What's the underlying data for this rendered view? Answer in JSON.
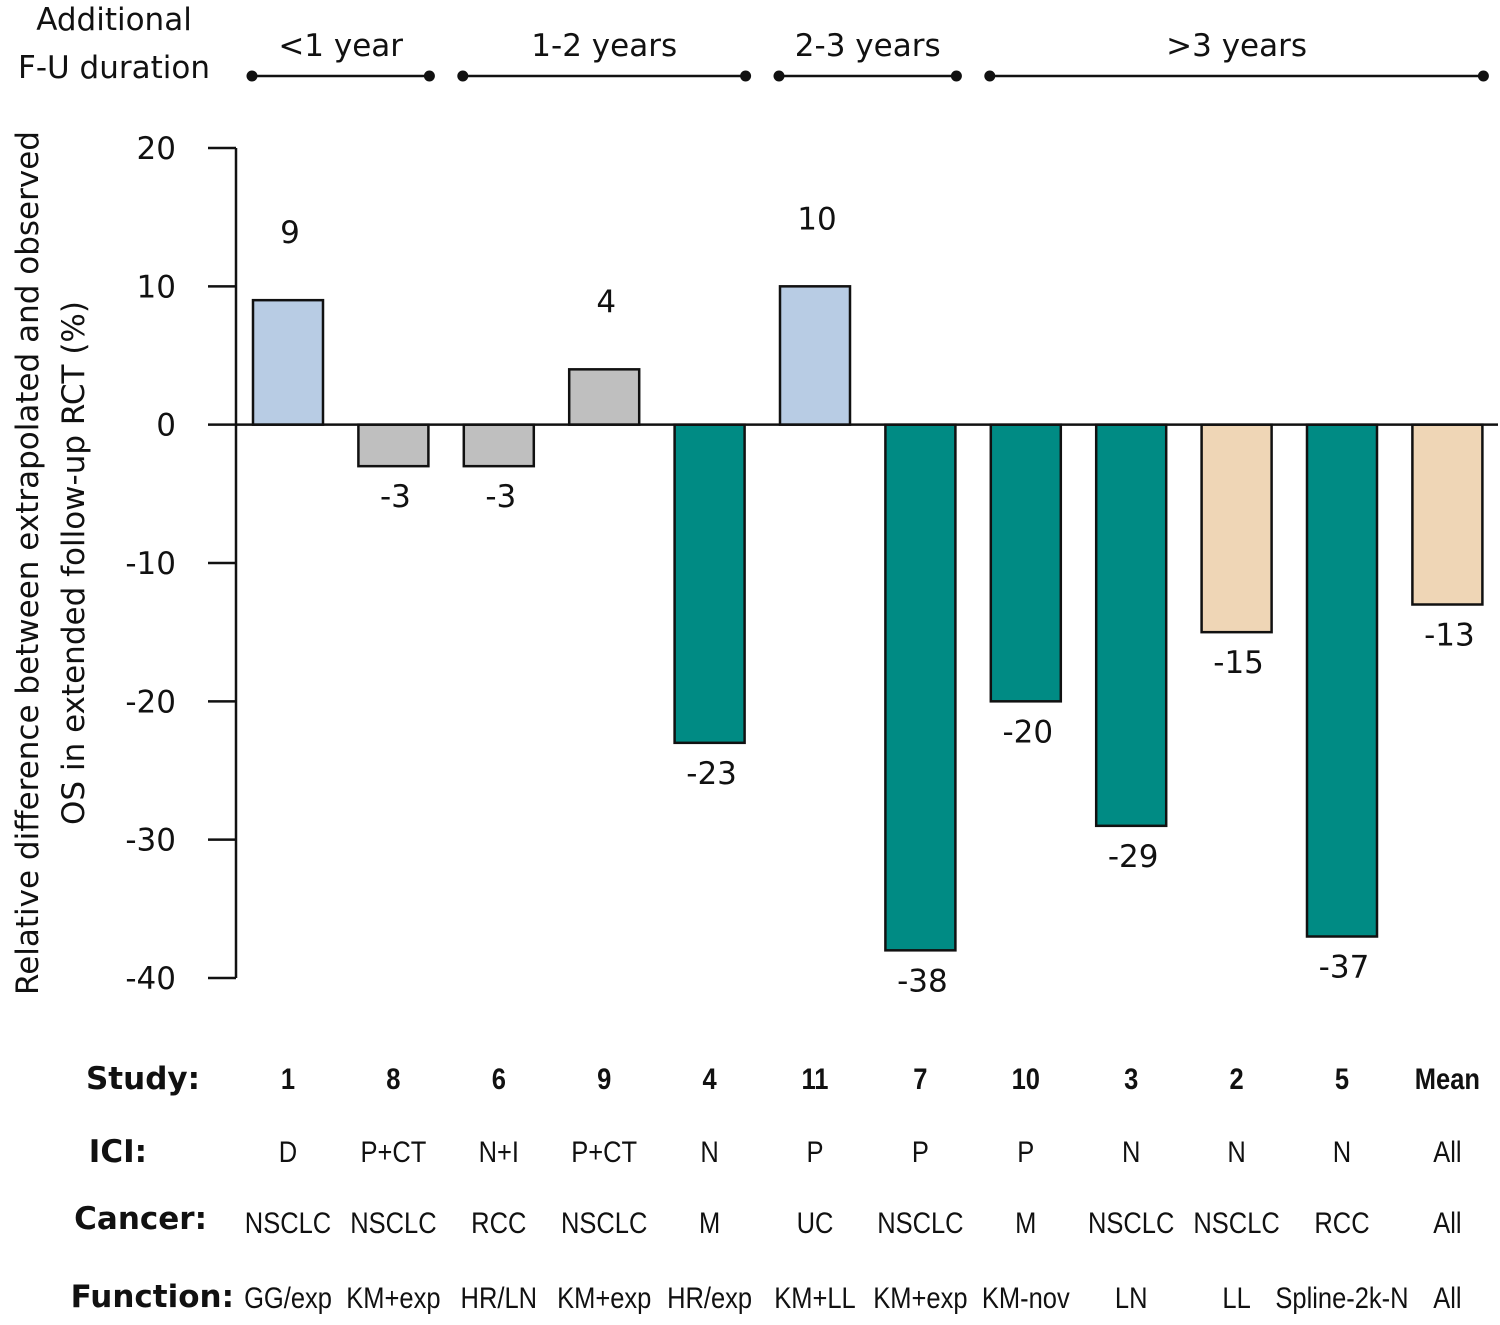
{
  "chart_data": {
    "type": "bar",
    "title": "",
    "ylabel_lines": [
      "Relative difference between extrapolated and observed",
      "OS in extended follow-up RCT (%)"
    ],
    "xlabel": "",
    "ylim": [
      -40,
      20
    ],
    "yticks": [
      20,
      10,
      0,
      -10,
      -20,
      -30,
      -40
    ],
    "grid": false,
    "legend": "none",
    "header_label_lines": [
      "Additional",
      "F-U duration"
    ],
    "duration_groups": [
      {
        "label": "<1 year",
        "from_index": 0,
        "to_index": 1
      },
      {
        "label": "1-2 years",
        "from_index": 2,
        "to_index": 4
      },
      {
        "label": "2-3 years",
        "from_index": 5,
        "to_index": 6
      },
      {
        "label": ">3 years",
        "from_index": 7,
        "to_index": 11
      }
    ],
    "row_labels": {
      "study": "Study:",
      "ici": "ICI:",
      "cancer": "Cancer:",
      "function": "Function:"
    },
    "categories": [
      "1",
      "8",
      "6",
      "9",
      "4",
      "11",
      "7",
      "10",
      "3",
      "2",
      "5",
      "Mean"
    ],
    "values": [
      9,
      -3,
      -3,
      4,
      -23,
      10,
      -38,
      -20,
      -29,
      -15,
      -37,
      -13
    ],
    "data_labels": [
      "9",
      "-3",
      "-3",
      "4",
      "-23",
      "10",
      "-38",
      "-20",
      "-29",
      "-15",
      "-37",
      "-13"
    ],
    "ici": [
      "D",
      "P+CT",
      "N+I",
      "P+CT",
      "N",
      "P",
      "P",
      "P",
      "N",
      "N",
      "N",
      "All"
    ],
    "cancer": [
      "NSCLC",
      "NSCLC",
      "RCC",
      "NSCLC",
      "M",
      "UC",
      "NSCLC",
      "M",
      "NSCLC",
      "NSCLC",
      "RCC",
      "All"
    ],
    "function": [
      "GG/exp",
      "KM+exp",
      "HR/LN",
      "KM+exp",
      "HR/exp",
      "KM+LL",
      "KM+exp",
      "KM-nov",
      "LN",
      "LL",
      "Spline-2k-N",
      "All"
    ],
    "bar_color_groups": [
      "blue",
      "gray",
      "gray",
      "gray",
      "teal",
      "blue",
      "teal",
      "teal",
      "teal",
      "tan",
      "teal",
      "tan"
    ],
    "colors": {
      "blue": "#b8cce4",
      "gray": "#bfbfbf",
      "teal": "#008b84",
      "tan": "#efd6b6",
      "outline": "#111111"
    }
  }
}
